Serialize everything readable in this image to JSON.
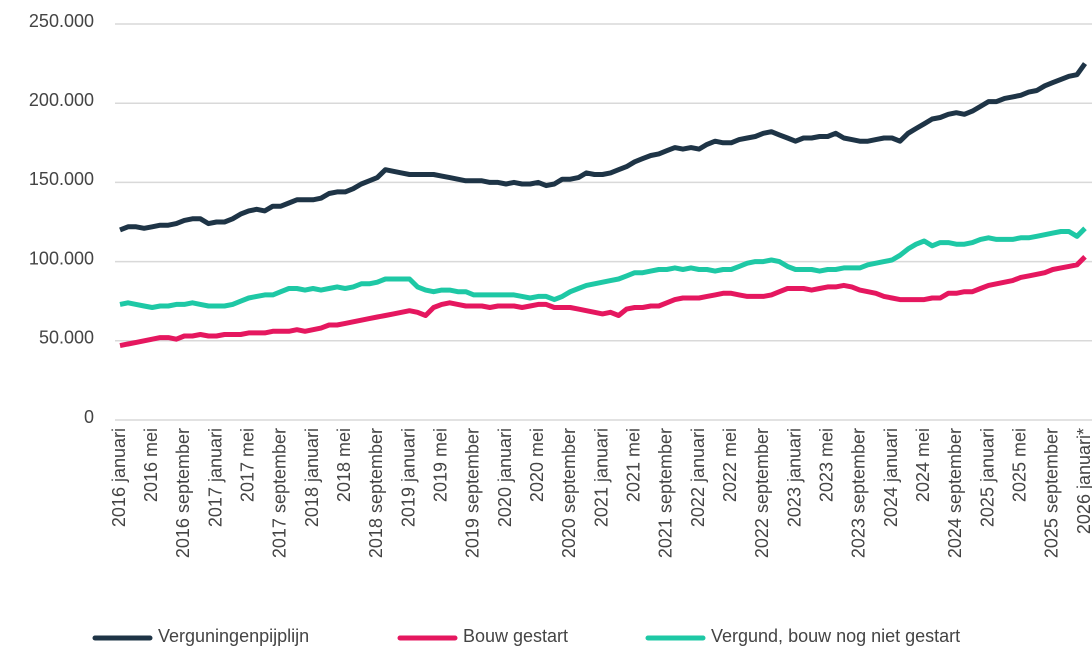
{
  "chart_data": {
    "type": "line",
    "categories": [
      "2016 januari",
      null,
      null,
      null,
      "2016 mei",
      null,
      null,
      null,
      "2016 september",
      null,
      null,
      null,
      "2017 januari",
      null,
      null,
      null,
      "2017 mei",
      null,
      null,
      null,
      "2017 september",
      null,
      null,
      null,
      "2018 januari",
      null,
      null,
      null,
      "2018 mei",
      null,
      null,
      null,
      "2018 september",
      null,
      null,
      null,
      "2019 januari",
      null,
      null,
      null,
      "2019 mei",
      null,
      null,
      null,
      "2019 september",
      null,
      null,
      null,
      "2020 januari",
      null,
      null,
      null,
      "2020 mei",
      null,
      null,
      null,
      "2020 september",
      null,
      null,
      null,
      "2021 januari",
      null,
      null,
      null,
      "2021 mei",
      null,
      null,
      null,
      "2021 september",
      null,
      null,
      null,
      "2022 januari",
      null,
      null,
      null,
      "2022 mei",
      null,
      null,
      null,
      "2022 september",
      null,
      null,
      null,
      "2023 januari",
      null,
      null,
      null,
      "2023 mei",
      null,
      null,
      null,
      "2023 september",
      null,
      null,
      null,
      "2024 januari",
      null,
      null,
      null,
      "2024 mei",
      null,
      null,
      null,
      "2024 september",
      null,
      null,
      null,
      "2025 januari",
      null,
      null,
      null,
      "2025 mei",
      null,
      null,
      null,
      "2025 september",
      null,
      null,
      null,
      "2026 januari*"
    ],
    "series": [
      {
        "name": "Verguningenpijplijn",
        "color": "#1e3446",
        "values": [
          120000,
          122000,
          122000,
          121000,
          122000,
          123000,
          123000,
          124000,
          126000,
          127000,
          127000,
          124000,
          125000,
          125000,
          127000,
          130000,
          132000,
          133000,
          132000,
          135000,
          135000,
          137000,
          139000,
          139000,
          139000,
          140000,
          143000,
          144000,
          144000,
          146000,
          149000,
          151000,
          153000,
          158000,
          157000,
          156000,
          155000,
          155000,
          155000,
          155000,
          154000,
          153000,
          152000,
          151000,
          151000,
          151000,
          150000,
          150000,
          149000,
          150000,
          149000,
          149000,
          150000,
          148000,
          149000,
          152000,
          152000,
          153000,
          156000,
          155000,
          155000,
          156000,
          158000,
          160000,
          163000,
          165000,
          167000,
          168000,
          170000,
          172000,
          171000,
          172000,
          171000,
          174000,
          176000,
          175000,
          175000,
          177000,
          178000,
          179000,
          181000,
          182000,
          180000,
          178000,
          176000,
          178000,
          178000,
          179000,
          179000,
          181000,
          178000,
          177000,
          176000,
          176000,
          177000,
          178000,
          178000,
          176000,
          181000,
          184000,
          187000,
          190000,
          191000,
          193000,
          194000,
          193000,
          195000,
          198000,
          201000,
          201000,
          203000,
          204000,
          205000,
          207000,
          208000,
          211000,
          213000,
          215000,
          217000,
          218000,
          225000
        ]
      },
      {
        "name": "Bouw gestart",
        "color": "#e5175f",
        "values": [
          47000,
          48000,
          49000,
          50000,
          51000,
          52000,
          52000,
          51000,
          53000,
          53000,
          54000,
          53000,
          53000,
          54000,
          54000,
          54000,
          55000,
          55000,
          55000,
          56000,
          56000,
          56000,
          57000,
          56000,
          57000,
          58000,
          60000,
          60000,
          61000,
          62000,
          63000,
          64000,
          65000,
          66000,
          67000,
          68000,
          69000,
          68000,
          66000,
          71000,
          73000,
          74000,
          73000,
          72000,
          72000,
          72000,
          71000,
          72000,
          72000,
          72000,
          71000,
          72000,
          73000,
          73000,
          71000,
          71000,
          71000,
          70000,
          69000,
          68000,
          67000,
          68000,
          66000,
          70000,
          71000,
          71000,
          72000,
          72000,
          74000,
          76000,
          77000,
          77000,
          77000,
          78000,
          79000,
          80000,
          80000,
          79000,
          78000,
          78000,
          78000,
          79000,
          81000,
          83000,
          83000,
          83000,
          82000,
          83000,
          84000,
          84000,
          85000,
          84000,
          82000,
          81000,
          80000,
          78000,
          77000,
          76000,
          76000,
          76000,
          76000,
          77000,
          77000,
          80000,
          80000,
          81000,
          81000,
          83000,
          85000,
          86000,
          87000,
          88000,
          90000,
          91000,
          92000,
          93000,
          95000,
          96000,
          97000,
          98000,
          103000
        ]
      },
      {
        "name": "Vergund, bouw nog niet gestart",
        "color": "#1ec8a5",
        "values": [
          73000,
          74000,
          73000,
          72000,
          71000,
          72000,
          72000,
          73000,
          73000,
          74000,
          73000,
          72000,
          72000,
          72000,
          73000,
          75000,
          77000,
          78000,
          79000,
          79000,
          81000,
          83000,
          83000,
          82000,
          83000,
          82000,
          83000,
          84000,
          83000,
          84000,
          86000,
          86000,
          87000,
          89000,
          89000,
          89000,
          89000,
          84000,
          82000,
          81000,
          82000,
          82000,
          81000,
          81000,
          79000,
          79000,
          79000,
          79000,
          79000,
          79000,
          78000,
          77000,
          78000,
          78000,
          76000,
          78000,
          81000,
          83000,
          85000,
          86000,
          87000,
          88000,
          89000,
          91000,
          93000,
          93000,
          94000,
          95000,
          95000,
          96000,
          95000,
          96000,
          95000,
          95000,
          94000,
          95000,
          95000,
          97000,
          99000,
          100000,
          100000,
          101000,
          100000,
          97000,
          95000,
          95000,
          95000,
          94000,
          95000,
          95000,
          96000,
          96000,
          96000,
          98000,
          99000,
          100000,
          101000,
          104000,
          108000,
          111000,
          113000,
          110000,
          112000,
          112000,
          111000,
          111000,
          112000,
          114000,
          115000,
          114000,
          114000,
          114000,
          115000,
          115000,
          116000,
          117000,
          118000,
          119000,
          119000,
          116000,
          121000
        ]
      }
    ],
    "ylim": [
      0,
      250000
    ],
    "yticks": [
      0,
      {
        "value": 50000,
        "label": "50.000"
      },
      {
        "value": 100000,
        "label": "100.000"
      },
      {
        "value": 150000,
        "label": "150.000"
      },
      {
        "value": 200000,
        "label": "200.000"
      },
      {
        "value": 250000,
        "label": "250.000"
      }
    ],
    "grid": true,
    "legend": "bottom"
  }
}
